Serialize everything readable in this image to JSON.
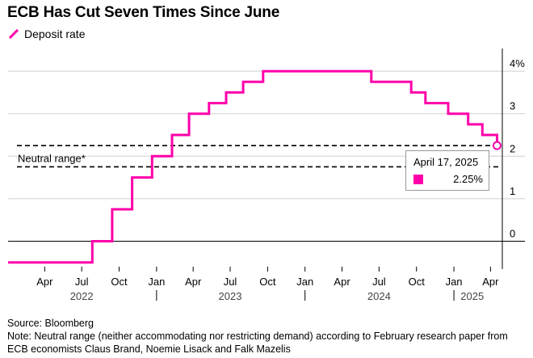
{
  "colors": {
    "series": "#ff00aa",
    "axis": "#000000",
    "grid": "#cfcfcf"
  },
  "chart_data": {
    "type": "line",
    "title": "ECB Has Cut Seven Times Since June",
    "step": true,
    "series": [
      {
        "name": "Deposit rate",
        "points": [
          [
            "2022-01-01",
            -0.5
          ],
          [
            "2022-07-27",
            0.0
          ],
          [
            "2022-09-14",
            0.75
          ],
          [
            "2022-11-02",
            1.5
          ],
          [
            "2022-12-21",
            2.0
          ],
          [
            "2023-02-08",
            2.5
          ],
          [
            "2023-03-22",
            3.0
          ],
          [
            "2023-05-10",
            3.25
          ],
          [
            "2023-06-21",
            3.5
          ],
          [
            "2023-08-02",
            3.75
          ],
          [
            "2023-09-20",
            4.0
          ],
          [
            "2024-06-12",
            3.75
          ],
          [
            "2024-09-18",
            3.5
          ],
          [
            "2024-10-23",
            3.25
          ],
          [
            "2024-12-18",
            3.0
          ],
          [
            "2025-02-05",
            2.75
          ],
          [
            "2025-03-12",
            2.5
          ],
          [
            "2025-04-17",
            2.25
          ]
        ]
      }
    ],
    "neutral_range": {
      "label": "Neutral range*",
      "low": 1.75,
      "high": 2.25
    },
    "y_ticks": [
      {
        "value": 4,
        "label": "4%"
      },
      {
        "value": 3,
        "label": "3"
      },
      {
        "value": 2,
        "label": "2"
      },
      {
        "value": 1,
        "label": "1"
      },
      {
        "value": 0,
        "label": "0"
      }
    ],
    "ylim": [
      -0.6,
      4.25
    ],
    "xlim": [
      "2022-01-01",
      "2025-04-30"
    ],
    "month_ticks": [
      {
        "date": "2022-04-01",
        "label": "Apr"
      },
      {
        "date": "2022-07-01",
        "label": "Jul"
      },
      {
        "date": "2022-10-01",
        "label": "Oct"
      },
      {
        "date": "2023-01-01",
        "label": "Jan"
      },
      {
        "date": "2023-04-01",
        "label": "Apr"
      },
      {
        "date": "2023-07-01",
        "label": "Jul"
      },
      {
        "date": "2023-10-01",
        "label": "Oct"
      },
      {
        "date": "2024-01-01",
        "label": "Jan"
      },
      {
        "date": "2024-04-01",
        "label": "Apr"
      },
      {
        "date": "2024-07-01",
        "label": "Jul"
      },
      {
        "date": "2024-10-01",
        "label": "Oct"
      },
      {
        "date": "2025-01-01",
        "label": "Jan"
      },
      {
        "date": "2025-04-01",
        "label": "Apr"
      }
    ],
    "year_labels": [
      {
        "center": "2022-07-01",
        "label": "2022"
      },
      {
        "center": "2023-07-01",
        "label": "2023"
      },
      {
        "center": "2024-07-01",
        "label": "2024"
      },
      {
        "center": "2025-02-15",
        "label": "2025"
      }
    ],
    "year_separators": [
      "2023-01-01",
      "2024-01-01",
      "2025-01-01"
    ],
    "tooltip": {
      "date": "April 17, 2025",
      "value": "2.25%"
    },
    "grid": true
  },
  "footer": {
    "source": "Source: Bloomberg",
    "note": "Note: Neutral range (neither accommodating nor restricting demand) according to February research paper from ECB economists Claus Brand, Noemie Lisack and Falk Mazelis"
  }
}
